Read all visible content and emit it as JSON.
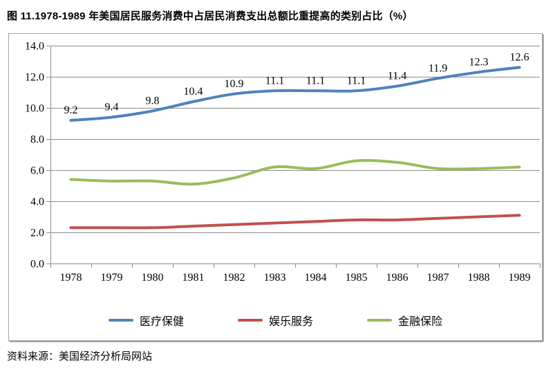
{
  "page": {
    "title": "图 11.1978-1989 年美国居民服务消费中占居民消费支出总额比重提高的类别占比（%）",
    "source": "资料来源：美国经济分析局网站"
  },
  "chart_data": {
    "type": "line",
    "title": "图 11.1978-1989 年美国居民服务消费中占居民消费支出总额比重提高的类别占比（%）",
    "categories": [
      "1978",
      "1979",
      "1980",
      "1981",
      "1982",
      "1983",
      "1984",
      "1985",
      "1986",
      "1987",
      "1988",
      "1989"
    ],
    "series": [
      {
        "name": "医疗保健",
        "color": "#4F81BD",
        "data_labels": true,
        "values": [
          9.2,
          9.4,
          9.8,
          10.4,
          10.9,
          11.1,
          11.1,
          11.1,
          11.4,
          11.9,
          12.3,
          12.6
        ]
      },
      {
        "name": "娱乐服务",
        "color": "#C0504D",
        "data_labels": false,
        "values": [
          2.3,
          2.3,
          2.3,
          2.4,
          2.5,
          2.6,
          2.7,
          2.8,
          2.8,
          2.9,
          3.0,
          3.1
        ]
      },
      {
        "name": "金融保险",
        "color": "#9BBB59",
        "data_labels": false,
        "values": [
          5.4,
          5.3,
          5.3,
          5.1,
          5.5,
          6.2,
          6.1,
          6.6,
          6.5,
          6.1,
          6.1,
          6.2
        ]
      }
    ],
    "xlabel": "",
    "ylabel": "",
    "ylim": [
      0,
      14
    ],
    "ytick_step": 2,
    "ytick_labels": [
      "0.0",
      "2.0",
      "4.0",
      "6.0",
      "8.0",
      "10.0",
      "12.0",
      "14.0"
    ],
    "grid": "horizontal",
    "legend_position": "bottom",
    "axis_color": "#8c8c8c",
    "text_color": "#000000"
  }
}
